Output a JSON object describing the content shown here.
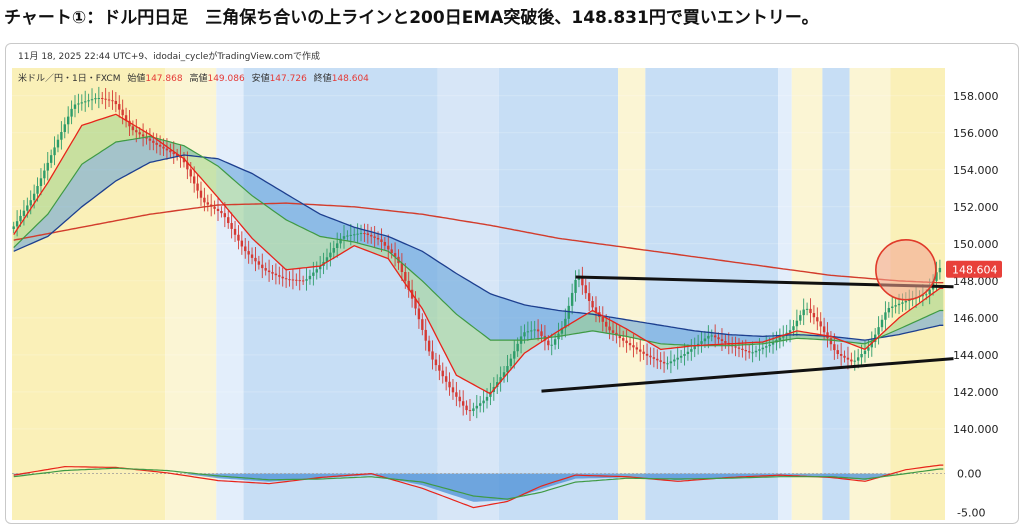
{
  "headline": "チャート①：ドル円日足　三角保ち合いの上ラインと200日EMA突破後、148.831円で買いエントリー。",
  "chart_data": {
    "type": "candlestick",
    "header": {
      "timestamp": "11月 18, 2025 22:44 UTC+9、idodai_cycleがTradingView.comで作成",
      "symbol": "米ドル／円・1日・FXCM",
      "open_label": "始値",
      "open": "147.868",
      "high_label": "高値",
      "high": "149.086",
      "low_label": "安値",
      "low": "147.726",
      "close_label": "終値",
      "close": "148.604"
    },
    "price_axis": {
      "min": 138.0,
      "max": 159.5,
      "ticks": [
        "158.000",
        "156.000",
        "154.000",
        "152.000",
        "150.000",
        "148.000",
        "146.000",
        "144.000",
        "142.000",
        "140.000"
      ]
    },
    "last_price": "148.604",
    "oscillator_axis": {
      "min": -6.0,
      "max": 1.5,
      "ticks": [
        "0.00",
        "-5.00"
      ]
    },
    "bar_count": 140,
    "price_path": [
      [
        0,
        150.8
      ],
      [
        6,
        152.5
      ],
      [
        12,
        155.0
      ],
      [
        18,
        157.5
      ],
      [
        25,
        157.9
      ],
      [
        30,
        157.7
      ],
      [
        35,
        156.2
      ],
      [
        42,
        155.4
      ],
      [
        50,
        154.6
      ],
      [
        56,
        152.3
      ],
      [
        62,
        151.6
      ],
      [
        68,
        149.7
      ],
      [
        74,
        148.6
      ],
      [
        80,
        148.1
      ],
      [
        86,
        148.0
      ],
      [
        91,
        148.9
      ],
      [
        97,
        150.4
      ],
      [
        103,
        150.6
      ],
      [
        108,
        150.2
      ],
      [
        113,
        149.2
      ],
      [
        118,
        146.8
      ],
      [
        123,
        143.9
      ],
      [
        129,
        142.1
      ],
      [
        134,
        140.9
      ],
      [
        139,
        141.6
      ],
      [
        145,
        143.2
      ],
      [
        150,
        145.2
      ],
      [
        154,
        145.4
      ],
      [
        158,
        144.4
      ],
      [
        162,
        145.6
      ],
      [
        166,
        148.4
      ],
      [
        170,
        146.7
      ],
      [
        175,
        145.4
      ],
      [
        180,
        144.7
      ],
      [
        186,
        144.0
      ],
      [
        192,
        143.5
      ],
      [
        198,
        144.1
      ],
      [
        205,
        145.1
      ],
      [
        211,
        144.5
      ],
      [
        217,
        144.1
      ],
      [
        223,
        144.6
      ],
      [
        229,
        145.4
      ],
      [
        233,
        146.6
      ],
      [
        237,
        145.7
      ],
      [
        242,
        144.1
      ],
      [
        247,
        143.6
      ],
      [
        252,
        144.5
      ],
      [
        257,
        146.5
      ],
      [
        261,
        146.8
      ],
      [
        265,
        147.1
      ],
      [
        269,
        147.3
      ],
      [
        272,
        148.7
      ]
    ],
    "ema_fast_path": [
      [
        0,
        150.5
      ],
      [
        10,
        153.3
      ],
      [
        20,
        156.4
      ],
      [
        30,
        157.0
      ],
      [
        40,
        155.9
      ],
      [
        50,
        154.6
      ],
      [
        60,
        152.5
      ],
      [
        70,
        150.3
      ],
      [
        80,
        148.6
      ],
      [
        90,
        148.8
      ],
      [
        100,
        149.9
      ],
      [
        110,
        149.2
      ],
      [
        120,
        146.5
      ],
      [
        130,
        142.9
      ],
      [
        140,
        141.9
      ],
      [
        150,
        144.1
      ],
      [
        160,
        145.3
      ],
      [
        170,
        146.4
      ],
      [
        180,
        145.4
      ],
      [
        190,
        144.3
      ],
      [
        200,
        144.5
      ],
      [
        210,
        144.6
      ],
      [
        220,
        144.7
      ],
      [
        230,
        145.3
      ],
      [
        240,
        145.0
      ],
      [
        250,
        144.3
      ],
      [
        260,
        146.0
      ],
      [
        272,
        147.6
      ]
    ],
    "ema_mid_path": [
      [
        0,
        149.8
      ],
      [
        10,
        151.6
      ],
      [
        20,
        154.3
      ],
      [
        30,
        155.5
      ],
      [
        40,
        155.8
      ],
      [
        50,
        155.3
      ],
      [
        60,
        154.2
      ],
      [
        70,
        152.6
      ],
      [
        80,
        151.3
      ],
      [
        90,
        150.4
      ],
      [
        100,
        150.1
      ],
      [
        110,
        149.6
      ],
      [
        120,
        148.0
      ],
      [
        130,
        146.2
      ],
      [
        140,
        144.8
      ],
      [
        150,
        144.8
      ],
      [
        160,
        145.0
      ],
      [
        170,
        145.3
      ],
      [
        180,
        145.0
      ],
      [
        190,
        144.6
      ],
      [
        200,
        144.5
      ],
      [
        210,
        144.5
      ],
      [
        220,
        144.6
      ],
      [
        230,
        144.9
      ],
      [
        240,
        144.8
      ],
      [
        250,
        144.6
      ],
      [
        260,
        145.4
      ],
      [
        272,
        146.4
      ]
    ],
    "ema_slow_path": [
      [
        0,
        149.6
      ],
      [
        10,
        150.4
      ],
      [
        20,
        152.0
      ],
      [
        30,
        153.4
      ],
      [
        40,
        154.4
      ],
      [
        50,
        154.8
      ],
      [
        60,
        154.6
      ],
      [
        70,
        153.8
      ],
      [
        80,
        152.7
      ],
      [
        90,
        151.6
      ],
      [
        100,
        150.9
      ],
      [
        110,
        150.4
      ],
      [
        120,
        149.6
      ],
      [
        130,
        148.4
      ],
      [
        140,
        147.3
      ],
      [
        150,
        146.7
      ],
      [
        160,
        146.4
      ],
      [
        170,
        146.2
      ],
      [
        180,
        145.9
      ],
      [
        190,
        145.6
      ],
      [
        200,
        145.3
      ],
      [
        210,
        145.1
      ],
      [
        220,
        145.0
      ],
      [
        230,
        145.1
      ],
      [
        240,
        145.0
      ],
      [
        250,
        144.8
      ],
      [
        260,
        145.1
      ],
      [
        272,
        145.6
      ]
    ],
    "ema200_path": [
      [
        0,
        150.2
      ],
      [
        20,
        150.9
      ],
      [
        40,
        151.6
      ],
      [
        60,
        152.1
      ],
      [
        80,
        152.2
      ],
      [
        100,
        152.0
      ],
      [
        120,
        151.6
      ],
      [
        140,
        151.0
      ],
      [
        160,
        150.3
      ],
      [
        180,
        149.8
      ],
      [
        200,
        149.3
      ],
      [
        220,
        148.8
      ],
      [
        240,
        148.3
      ],
      [
        260,
        148.0
      ],
      [
        272,
        147.9
      ]
    ],
    "osc_fast_path": [
      [
        0,
        -0.2
      ],
      [
        15,
        0.9
      ],
      [
        30,
        0.8
      ],
      [
        45,
        0.1
      ],
      [
        60,
        -0.9
      ],
      [
        75,
        -1.3
      ],
      [
        90,
        -0.5
      ],
      [
        105,
        0.0
      ],
      [
        120,
        -1.9
      ],
      [
        135,
        -4.4
      ],
      [
        145,
        -3.6
      ],
      [
        155,
        -1.6
      ],
      [
        165,
        -0.2
      ],
      [
        180,
        -0.4
      ],
      [
        195,
        -1.0
      ],
      [
        210,
        -0.5
      ],
      [
        225,
        -0.2
      ],
      [
        240,
        -0.5
      ],
      [
        250,
        -1.0
      ],
      [
        262,
        0.5
      ],
      [
        272,
        1.1
      ]
    ],
    "osc_slow_path": [
      [
        0,
        -0.4
      ],
      [
        15,
        0.4
      ],
      [
        30,
        0.7
      ],
      [
        45,
        0.4
      ],
      [
        60,
        -0.3
      ],
      [
        75,
        -0.8
      ],
      [
        90,
        -0.7
      ],
      [
        105,
        -0.4
      ],
      [
        120,
        -1.1
      ],
      [
        135,
        -2.9
      ],
      [
        145,
        -3.3
      ],
      [
        155,
        -2.4
      ],
      [
        165,
        -1.1
      ],
      [
        180,
        -0.6
      ],
      [
        195,
        -0.7
      ],
      [
        210,
        -0.6
      ],
      [
        225,
        -0.4
      ],
      [
        240,
        -0.4
      ],
      [
        250,
        -0.7
      ],
      [
        262,
        0.0
      ],
      [
        272,
        0.6
      ]
    ],
    "annotations": {
      "upper_line": {
        "from": [
          0,
          149.0
        ],
        "to": [
          272,
          147.7
        ],
        "extend_to": [
          276,
          147.6
        ],
        "start_bar": 165
      },
      "lower_line": {
        "from": [
          0,
          139.8
        ],
        "to": [
          276,
          143.8
        ],
        "start_bar": 155
      },
      "breakout_circle": {
        "bar": 262,
        "price": 148.6
      }
    },
    "background_zones": [
      {
        "from": 0,
        "to": 45,
        "color": "#faf0b8"
      },
      {
        "from": 45,
        "to": 60,
        "color": "#fbf5d4"
      },
      {
        "from": 60,
        "to": 68,
        "color": "#e3eefb"
      },
      {
        "from": 68,
        "to": 125,
        "color": "#c7def5"
      },
      {
        "from": 125,
        "to": 143,
        "color": "#d7e6f7"
      },
      {
        "from": 143,
        "to": 178,
        "color": "#c7def5"
      },
      {
        "from": 178,
        "to": 186,
        "color": "#fbf5d4"
      },
      {
        "from": 186,
        "to": 225,
        "color": "#c7def5"
      },
      {
        "from": 225,
        "to": 229,
        "color": "#e3eefb"
      },
      {
        "from": 229,
        "to": 238,
        "color": "#fbf5d4"
      },
      {
        "from": 238,
        "to": 246,
        "color": "#c7def5"
      },
      {
        "from": 246,
        "to": 258,
        "color": "#fbf5d4"
      },
      {
        "from": 258,
        "to": 274,
        "color": "#faf0b8"
      }
    ]
  }
}
